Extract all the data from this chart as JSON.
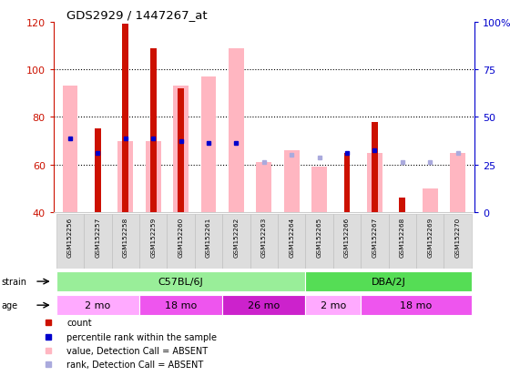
{
  "title": "GDS2929 / 1447267_at",
  "samples": [
    "GSM152256",
    "GSM152257",
    "GSM152258",
    "GSM152259",
    "GSM152260",
    "GSM152261",
    "GSM152262",
    "GSM152263",
    "GSM152264",
    "GSM152265",
    "GSM152266",
    "GSM152267",
    "GSM152268",
    "GSM152269",
    "GSM152270"
  ],
  "count_values": [
    0,
    75,
    119,
    109,
    92,
    0,
    0,
    0,
    0,
    0,
    65,
    78,
    46,
    0,
    0
  ],
  "pink_bar_values": [
    93,
    0,
    70,
    70,
    93,
    97,
    109,
    61,
    66,
    59,
    0,
    65,
    0,
    50,
    65
  ],
  "blue_dot_left_values": [
    71,
    65,
    71,
    71,
    70,
    69,
    69,
    0,
    0,
    0,
    65,
    66,
    0,
    0,
    0
  ],
  "blue_dot_absent_values": [
    0,
    0,
    0,
    0,
    0,
    0,
    0,
    61,
    64,
    63,
    0,
    0,
    61,
    61,
    65
  ],
  "has_count": [
    false,
    true,
    true,
    true,
    true,
    false,
    false,
    false,
    false,
    false,
    true,
    true,
    true,
    false,
    false
  ],
  "has_pink": [
    true,
    false,
    true,
    true,
    true,
    true,
    true,
    true,
    true,
    true,
    false,
    true,
    false,
    true,
    true
  ],
  "has_blue": [
    true,
    true,
    true,
    true,
    true,
    true,
    true,
    false,
    false,
    false,
    true,
    true,
    false,
    false,
    false
  ],
  "has_blue_absent": [
    false,
    false,
    false,
    false,
    false,
    false,
    false,
    true,
    true,
    true,
    false,
    false,
    true,
    true,
    true
  ],
  "ylim_left": [
    40,
    120
  ],
  "ylim_right": [
    0,
    100
  ],
  "left_yticks": [
    40,
    60,
    80,
    100,
    120
  ],
  "right_yticks": [
    0,
    25,
    50,
    75,
    100
  ],
  "right_yticklabels": [
    "0",
    "25",
    "50",
    "75",
    "100%"
  ],
  "strain_groups": [
    {
      "label": "C57BL/6J",
      "start": 0,
      "end": 9,
      "color": "#99EE99"
    },
    {
      "label": "DBA/2J",
      "start": 9,
      "end": 15,
      "color": "#55DD55"
    }
  ],
  "age_groups": [
    {
      "label": "2 mo",
      "start": 0,
      "end": 3,
      "color": "#FFAAFF"
    },
    {
      "label": "18 mo",
      "start": 3,
      "end": 6,
      "color": "#EE55EE"
    },
    {
      "label": "26 mo",
      "start": 6,
      "end": 9,
      "color": "#CC22CC"
    },
    {
      "label": "2 mo",
      "start": 9,
      "end": 11,
      "color": "#FFAAFF"
    },
    {
      "label": "18 mo",
      "start": 11,
      "end": 15,
      "color": "#EE55EE"
    }
  ],
  "count_color": "#CC1100",
  "pink_color": "#FFB6C1",
  "blue_color": "#0000CC",
  "blue_absent_color": "#AAAADD",
  "bg_color": "#FFFFFF",
  "axis_color_left": "#CC1100",
  "axis_color_right": "#0000CC"
}
